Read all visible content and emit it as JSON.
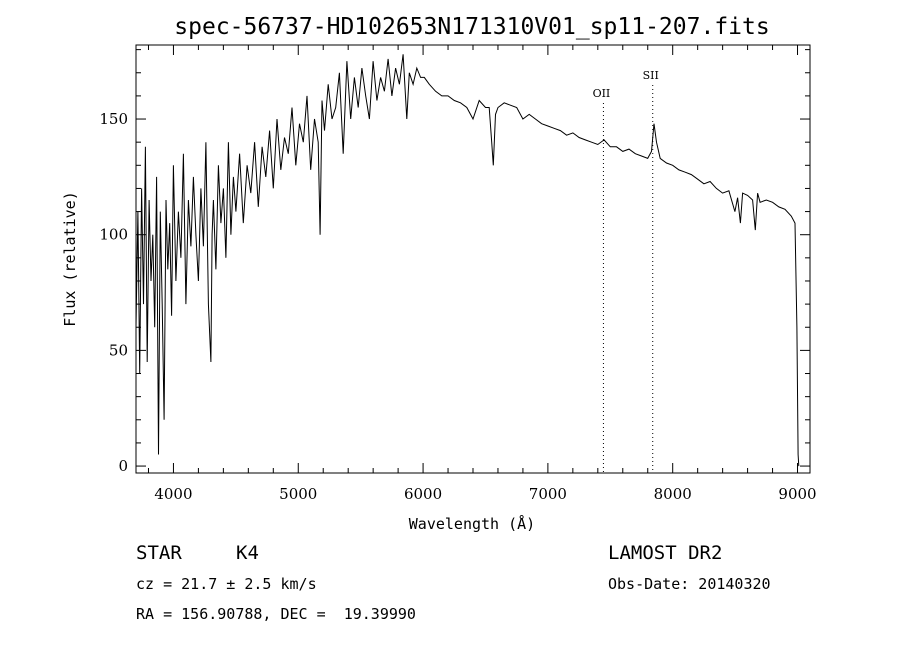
{
  "chart_data": {
    "type": "line",
    "title": "spec-56737-HD102653N171310V01_sp11-207.fits",
    "xlabel": "Wavelength (Å)",
    "ylabel": "Flux (relative)",
    "xlim": [
      3700,
      9100
    ],
    "ylim": [
      -3,
      182
    ],
    "x_ticks": [
      4000,
      5000,
      6000,
      7000,
      8000,
      9000
    ],
    "y_ticks": [
      0,
      50,
      100,
      150
    ],
    "grid": false,
    "legend": "none",
    "series": [
      {
        "x": [
          3700,
          3715,
          3730,
          3745,
          3760,
          3775,
          3790,
          3805,
          3820,
          3835,
          3850,
          3865,
          3880,
          3895,
          3910,
          3925,
          3940,
          3955,
          3970,
          3985,
          4000,
          4020,
          4040,
          4060,
          4080,
          4100,
          4120,
          4140,
          4160,
          4180,
          4200,
          4220,
          4240,
          4260,
          4280,
          4300,
          4310,
          4320,
          4340,
          4360,
          4380,
          4400,
          4420,
          4440,
          4460,
          4480,
          4500,
          4530,
          4560,
          4590,
          4620,
          4650,
          4680,
          4710,
          4740,
          4770,
          4800,
          4830,
          4860,
          4890,
          4920,
          4950,
          4980,
          5010,
          5040,
          5070,
          5100,
          5130,
          5160,
          5175,
          5190,
          5210,
          5240,
          5270,
          5300,
          5330,
          5360,
          5390,
          5420,
          5450,
          5480,
          5510,
          5540,
          5570,
          5600,
          5630,
          5660,
          5690,
          5720,
          5750,
          5780,
          5810,
          5840,
          5870,
          5890,
          5920,
          5950,
          5980,
          6010,
          6050,
          6100,
          6150,
          6200,
          6250,
          6300,
          6350,
          6400,
          6450,
          6500,
          6530,
          6550,
          6563,
          6580,
          6600,
          6650,
          6700,
          6750,
          6800,
          6850,
          6900,
          6950,
          7000,
          7050,
          7100,
          7150,
          7200,
          7250,
          7300,
          7350,
          7400,
          7450,
          7500,
          7550,
          7600,
          7650,
          7700,
          7750,
          7800,
          7830,
          7850,
          7870,
          7900,
          7950,
          8000,
          8050,
          8100,
          8150,
          8200,
          8250,
          8300,
          8350,
          8400,
          8450,
          8498,
          8520,
          8542,
          8560,
          8600,
          8640,
          8662,
          8680,
          8700,
          8750,
          8800,
          8850,
          8900,
          8950,
          8980,
          8995,
          9005,
          9010
        ],
        "y": [
          60,
          110,
          40,
          120,
          70,
          138,
          45,
          115,
          80,
          100,
          60,
          125,
          5,
          110,
          70,
          20,
          115,
          85,
          105,
          65,
          130,
          80,
          110,
          90,
          135,
          70,
          115,
          95,
          125,
          100,
          80,
          120,
          95,
          140,
          70,
          45,
          100,
          115,
          85,
          130,
          105,
          120,
          90,
          140,
          100,
          125,
          110,
          135,
          105,
          130,
          118,
          140,
          112,
          138,
          125,
          145,
          120,
          150,
          128,
          142,
          135,
          155,
          130,
          148,
          140,
          160,
          128,
          150,
          140,
          100,
          158,
          145,
          165,
          150,
          155,
          170,
          135,
          175,
          150,
          168,
          155,
          172,
          160,
          150,
          175,
          158,
          168,
          162,
          176,
          160,
          172,
          165,
          178,
          150,
          170,
          165,
          172,
          168,
          168,
          165,
          162,
          160,
          160,
          158,
          157,
          155,
          150,
          158,
          155,
          155,
          140,
          130,
          152,
          155,
          157,
          156,
          155,
          150,
          152,
          150,
          148,
          147,
          146,
          145,
          143,
          144,
          142,
          141,
          140,
          139,
          141,
          138,
          138,
          136,
          137,
          135,
          134,
          133,
          136,
          148,
          140,
          133,
          131,
          130,
          128,
          127,
          126,
          124,
          122,
          123,
          120,
          118,
          119,
          110,
          116,
          105,
          118,
          117,
          115,
          102,
          118,
          114,
          115,
          114,
          112,
          111,
          108,
          105,
          60,
          5,
          0
        ]
      }
    ],
    "annotations": [
      {
        "label": "OII",
        "x": 7445
      },
      {
        "label": "SII",
        "x": 7840
      }
    ]
  },
  "info": {
    "object_type": "STAR",
    "subclass": "K4",
    "survey": "LAMOST DR2",
    "cz": "cz = 21.7 ± 2.5 km/s",
    "obs_date": "Obs-Date: 20140320",
    "coords": "RA = 156.90788, DEC =  19.39990"
  }
}
